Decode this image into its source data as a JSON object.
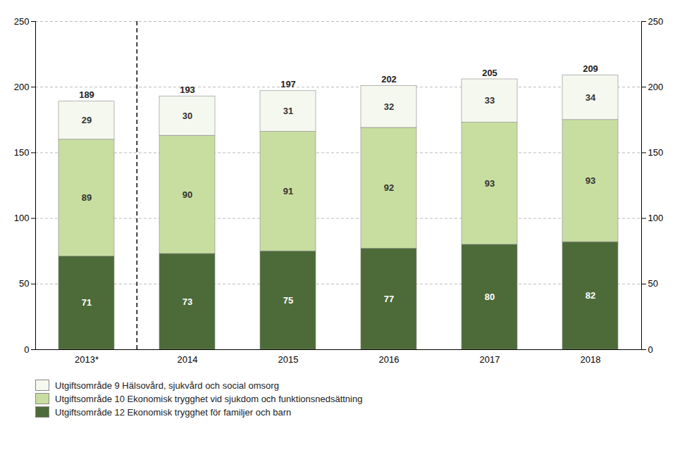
{
  "chart_data": {
    "type": "bar",
    "stacked": true,
    "categories": [
      "2013*",
      "2014",
      "2015",
      "2016",
      "2017",
      "2018"
    ],
    "series": [
      {
        "name": "Utgiftsområde 12 Ekonomisk trygghet för familjer och barn",
        "color": "#4d6b38",
        "values": [
          71,
          73,
          75,
          77,
          80,
          82
        ]
      },
      {
        "name": "Utgiftsområde 10 Ekonomisk trygghet vid sjukdom och funktionsnedsättning",
        "color": "#c8dea0",
        "values": [
          89,
          90,
          91,
          92,
          93,
          93
        ]
      },
      {
        "name": "Utgiftsområde 9 Hälsovård, sjukvård och social omsorg",
        "color": "#f5f8ef",
        "values": [
          29,
          30,
          31,
          32,
          33,
          34
        ]
      }
    ],
    "totals": [
      189,
      193,
      197,
      202,
      205,
      209
    ],
    "ylim": [
      0,
      250
    ],
    "yticks": [
      0,
      50,
      100,
      150,
      200,
      250
    ],
    "grid": true,
    "data_labels": true,
    "legend": "bottom"
  }
}
